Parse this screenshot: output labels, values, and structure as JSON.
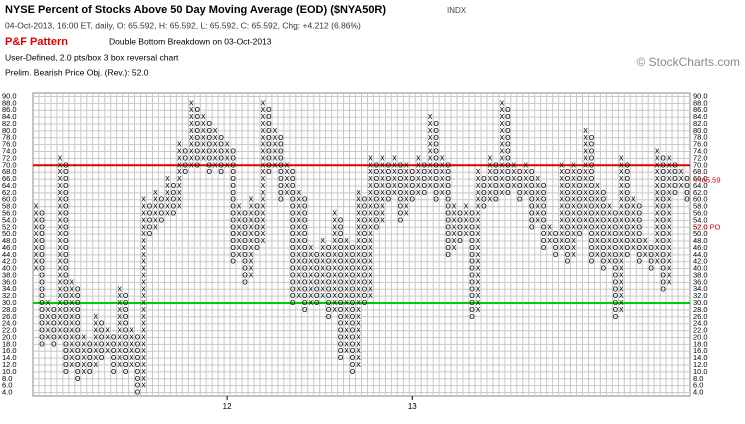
{
  "chart_data": {
    "type": "point-and-figure",
    "title": "NYSE Percent of Stocks Above 50 Day Moving Average (EOD) ($NYA50R)",
    "exchange": "INDX",
    "subtitle": "04-Oct-2013, 16:00 ET, daily, O: 65.592, H: 65.592, L: 65.592, C: 65.592, Chg: +4.212 (6.86%)",
    "pattern_label": "P&F Pattern",
    "pattern": "Double Bottom Breakdown on 03-Oct-2013",
    "settings_text": "User-Defined, 2.0 pts/box 3 box reversal chart",
    "objective_text": "Prelim. Bearish Price Obj. (Rev.): 52.0",
    "copyright": "© StockCharts.com",
    "ylim": [
      3,
      91
    ],
    "yticks": [
      {
        "value": 90,
        "label": "90.0"
      },
      {
        "value": 88,
        "label": "88.0"
      },
      {
        "value": 86,
        "label": "86.0"
      },
      {
        "value": 84,
        "label": "84.0"
      },
      {
        "value": 82,
        "label": "82.0"
      },
      {
        "value": 80,
        "label": "80.0"
      },
      {
        "value": 78,
        "label": "78.0"
      },
      {
        "value": 76,
        "label": "76.0"
      },
      {
        "value": 74,
        "label": "74.0"
      },
      {
        "value": 72,
        "label": "72.0"
      },
      {
        "value": 70,
        "label": "70.0"
      },
      {
        "value": 68,
        "label": "68.0"
      },
      {
        "value": 66,
        "label": "66.0"
      },
      {
        "value": 64,
        "label": "64.0"
      },
      {
        "value": 62,
        "label": "62.0"
      },
      {
        "value": 60,
        "label": "60.0"
      },
      {
        "value": 58,
        "label": "58.0"
      },
      {
        "value": 56,
        "label": "56.0"
      },
      {
        "value": 54,
        "label": "54.0"
      },
      {
        "value": 52,
        "label": "52.0"
      },
      {
        "value": 50,
        "label": "50.0"
      },
      {
        "value": 48,
        "label": "48.0"
      },
      {
        "value": 46,
        "label": "46.0"
      },
      {
        "value": 44,
        "label": "44.0"
      },
      {
        "value": 42,
        "label": "42.0"
      },
      {
        "value": 40,
        "label": "40.0"
      },
      {
        "value": 38,
        "label": "38.0"
      },
      {
        "value": 36,
        "label": "36.0"
      },
      {
        "value": 34,
        "label": "34.0"
      },
      {
        "value": 32,
        "label": "32.0"
      },
      {
        "value": 30,
        "label": "30.0"
      },
      {
        "value": 28,
        "label": "28.0"
      },
      {
        "value": 26,
        "label": "26.0"
      },
      {
        "value": 24,
        "label": "24.0"
      },
      {
        "value": 22,
        "label": "22.0"
      },
      {
        "value": 20,
        "label": "20.0"
      },
      {
        "value": 18,
        "label": "18.0"
      },
      {
        "value": 16,
        "label": "16.0"
      },
      {
        "value": 14,
        "label": "14.0"
      },
      {
        "value": 12,
        "label": "12.0"
      },
      {
        "value": 10,
        "label": "10.0"
      },
      {
        "value": 8,
        "label": "8.0"
      },
      {
        "value": 6,
        "label": "6.0"
      },
      {
        "value": 4,
        "label": "4.0"
      }
    ],
    "highlighted_yticks": [
      64,
      52
    ],
    "highlight_color": "#cc0000",
    "box_size": 2,
    "levels": [
      {
        "value": 70,
        "color": "#e00000"
      },
      {
        "value": 30,
        "color": "#00cc00"
      }
    ],
    "annotations": [
      {
        "value": 65.59,
        "label": "<<65.59"
      },
      {
        "value": 52,
        "label": "52.0 PO"
      }
    ],
    "year_labels": [
      {
        "column": 32,
        "label": "12"
      },
      {
        "column": 63,
        "label": "13"
      }
    ],
    "columns": [
      {
        "type": "X",
        "low": 40,
        "high": 58
      },
      {
        "type": "O",
        "low": 18,
        "high": 56
      },
      {
        "type": "X",
        "low": 20,
        "high": 30
      },
      {
        "type": "O",
        "low": 18,
        "high": 28
      },
      {
        "type": "X",
        "low": 20,
        "high": 72
      },
      {
        "type": "O",
        "low": 10,
        "high": 70
      },
      {
        "type": "X",
        "low": 12,
        "high": 36
      },
      {
        "type": "O",
        "low": 8,
        "high": 34
      },
      {
        "type": "X",
        "low": 10,
        "high": 20
      },
      {
        "type": "O",
        "low": 10,
        "high": 18
      },
      {
        "type": "X",
        "low": 12,
        "high": 26
      },
      {
        "type": "O",
        "low": 14,
        "high": 24
      },
      {
        "type": "X",
        "low": 16,
        "high": 22
      },
      {
        "type": "O",
        "low": 10,
        "high": 20
      },
      {
        "type": "X",
        "low": 12,
        "high": 34
      },
      {
        "type": "O",
        "low": 10,
        "high": 32
      },
      {
        "type": "X",
        "low": 12,
        "high": 22
      },
      {
        "type": "O",
        "low": 4,
        "high": 20
      },
      {
        "type": "X",
        "low": 6,
        "high": 60
      },
      {
        "type": "O",
        "low": 50,
        "high": 58
      },
      {
        "type": "X",
        "low": 52,
        "high": 62
      },
      {
        "type": "O",
        "low": 54,
        "high": 60
      },
      {
        "type": "X",
        "low": 56,
        "high": 66
      },
      {
        "type": "O",
        "low": 56,
        "high": 64
      },
      {
        "type": "X",
        "low": 58,
        "high": 76
      },
      {
        "type": "O",
        "low": 68,
        "high": 74
      },
      {
        "type": "X",
        "low": 70,
        "high": 88
      },
      {
        "type": "O",
        "low": 70,
        "high": 86
      },
      {
        "type": "X",
        "low": 72,
        "high": 84
      },
      {
        "type": "O",
        "low": 68,
        "high": 82
      },
      {
        "type": "X",
        "low": 70,
        "high": 80
      },
      {
        "type": "O",
        "low": 68,
        "high": 78
      },
      {
        "type": "X",
        "low": 70,
        "high": 76
      },
      {
        "type": "O",
        "low": 42,
        "high": 74
      },
      {
        "type": "X",
        "low": 44,
        "high": 58
      },
      {
        "type": "O",
        "low": 36,
        "high": 56
      },
      {
        "type": "X",
        "low": 38,
        "high": 60
      },
      {
        "type": "O",
        "low": 46,
        "high": 58
      },
      {
        "type": "X",
        "low": 48,
        "high": 88
      },
      {
        "type": "O",
        "low": 68,
        "high": 86
      },
      {
        "type": "X",
        "low": 70,
        "high": 80
      },
      {
        "type": "O",
        "low": 60,
        "high": 78
      },
      {
        "type": "X",
        "low": 62,
        "high": 70
      },
      {
        "type": "O",
        "low": 30,
        "high": 68
      },
      {
        "type": "X",
        "low": 32,
        "high": 62
      },
      {
        "type": "O",
        "low": 28,
        "high": 60
      },
      {
        "type": "X",
        "low": 30,
        "high": 46
      },
      {
        "type": "O",
        "low": 30,
        "high": 44
      },
      {
        "type": "X",
        "low": 32,
        "high": 48
      },
      {
        "type": "O",
        "low": 26,
        "high": 46
      },
      {
        "type": "X",
        "low": 28,
        "high": 56
      },
      {
        "type": "O",
        "low": 14,
        "high": 54
      },
      {
        "type": "X",
        "low": 16,
        "high": 48
      },
      {
        "type": "O",
        "low": 10,
        "high": 46
      },
      {
        "type": "X",
        "low": 12,
        "high": 62
      },
      {
        "type": "O",
        "low": 30,
        "high": 60
      },
      {
        "type": "X",
        "low": 32,
        "high": 72
      },
      {
        "type": "O",
        "low": 52,
        "high": 70
      },
      {
        "type": "X",
        "low": 54,
        "high": 72
      },
      {
        "type": "O",
        "low": 60,
        "high": 70
      },
      {
        "type": "X",
        "low": 62,
        "high": 72
      },
      {
        "type": "O",
        "low": 54,
        "high": 70
      },
      {
        "type": "X",
        "low": 56,
        "high": 70
      },
      {
        "type": "O",
        "low": 60,
        "high": 68
      },
      {
        "type": "X",
        "low": 62,
        "high": 72
      },
      {
        "type": "O",
        "low": 62,
        "high": 70
      },
      {
        "type": "X",
        "low": 64,
        "high": 84
      },
      {
        "type": "O",
        "low": 60,
        "high": 82
      },
      {
        "type": "X",
        "low": 62,
        "high": 72
      },
      {
        "type": "O",
        "low": 44,
        "high": 70
      },
      {
        "type": "X",
        "low": 46,
        "high": 58
      },
      {
        "type": "O",
        "low": 48,
        "high": 56
      },
      {
        "type": "X",
        "low": 50,
        "high": 58
      },
      {
        "type": "O",
        "low": 26,
        "high": 56
      },
      {
        "type": "X",
        "low": 28,
        "high": 68
      },
      {
        "type": "O",
        "low": 58,
        "high": 66
      },
      {
        "type": "X",
        "low": 60,
        "high": 72
      },
      {
        "type": "O",
        "low": 60,
        "high": 70
      },
      {
        "type": "X",
        "low": 62,
        "high": 88
      },
      {
        "type": "O",
        "low": 62,
        "high": 86
      },
      {
        "type": "X",
        "low": 64,
        "high": 70
      },
      {
        "type": "O",
        "low": 60,
        "high": 68
      },
      {
        "type": "X",
        "low": 62,
        "high": 70
      },
      {
        "type": "O",
        "low": 52,
        "high": 68
      },
      {
        "type": "X",
        "low": 54,
        "high": 66
      },
      {
        "type": "O",
        "low": 46,
        "high": 64
      },
      {
        "type": "X",
        "low": 48,
        "high": 52
      },
      {
        "type": "O",
        "low": 44,
        "high": 50
      },
      {
        "type": "X",
        "low": 46,
        "high": 70
      },
      {
        "type": "O",
        "low": 42,
        "high": 68
      },
      {
        "type": "X",
        "low": 44,
        "high": 70
      },
      {
        "type": "O",
        "low": 50,
        "high": 68
      },
      {
        "type": "X",
        "low": 52,
        "high": 80
      },
      {
        "type": "O",
        "low": 42,
        "high": 78
      },
      {
        "type": "X",
        "low": 44,
        "high": 64
      },
      {
        "type": "O",
        "low": 40,
        "high": 62
      },
      {
        "type": "X",
        "low": 42,
        "high": 58
      },
      {
        "type": "O",
        "low": 26,
        "high": 56
      },
      {
        "type": "X",
        "low": 28,
        "high": 72
      },
      {
        "type": "O",
        "low": 44,
        "high": 70
      },
      {
        "type": "X",
        "low": 46,
        "high": 60
      },
      {
        "type": "O",
        "low": 42,
        "high": 58
      },
      {
        "type": "X",
        "low": 44,
        "high": 48
      },
      {
        "type": "O",
        "low": 40,
        "high": 46
      },
      {
        "type": "X",
        "low": 42,
        "high": 74
      },
      {
        "type": "O",
        "low": 34,
        "high": 72
      },
      {
        "type": "X",
        "low": 36,
        "high": 72
      },
      {
        "type": "O",
        "low": 62,
        "high": 70
      },
      {
        "type": "X",
        "low": 64,
        "high": 68
      },
      {
        "type": "O",
        "low": 60,
        "high": 66
      }
    ]
  }
}
